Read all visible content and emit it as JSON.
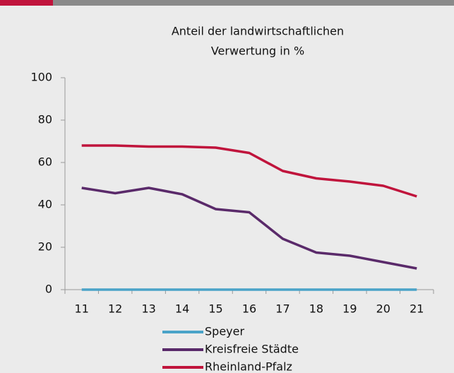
{
  "chart_data": {
    "type": "line",
    "title": [
      "Anteil der landwirtschaftlichen",
      "Verwertung in %"
    ],
    "categories": [
      "11",
      "12",
      "13",
      "14",
      "15",
      "16",
      "17",
      "18",
      "19",
      "20",
      "21"
    ],
    "series": [
      {
        "name": "Speyer",
        "color": "#4aa3c8",
        "values": [
          0,
          0,
          0,
          0,
          0,
          0,
          0,
          0,
          0,
          0,
          0
        ]
      },
      {
        "name": "Kreisfreie Städte",
        "color": "#5a2a6a",
        "values": [
          48,
          45.5,
          48,
          45,
          38,
          36.5,
          24,
          17.5,
          16,
          13,
          10
        ]
      },
      {
        "name": "Rheinland-Pfalz",
        "color": "#c0143c",
        "values": [
          68,
          68,
          67.5,
          67.5,
          67,
          64.5,
          56,
          52.5,
          51,
          49,
          44
        ]
      }
    ],
    "ylim": [
      0,
      100
    ],
    "yticks": [
      0,
      20,
      40,
      60,
      80,
      100
    ],
    "grid": false
  }
}
